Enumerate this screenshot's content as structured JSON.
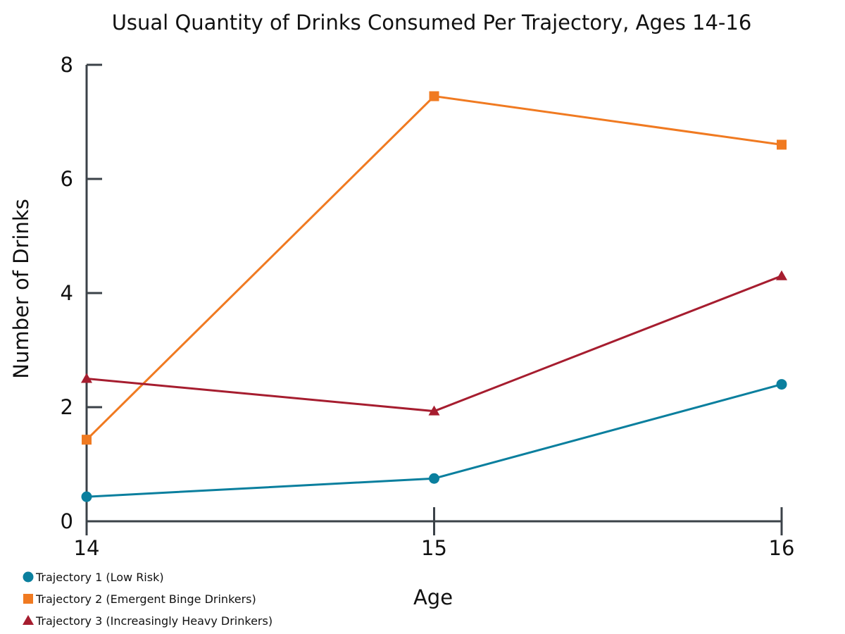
{
  "chart_data": {
    "type": "line",
    "title": "Usual Quantity of Drinks Consumed Per Trajectory, Ages 14-16",
    "xlabel": "Age",
    "ylabel": "Number of Drinks",
    "x": [
      14,
      15,
      16
    ],
    "x_tick_labels": [
      "14",
      "15",
      "16"
    ],
    "y_ticks": [
      0,
      2,
      4,
      6,
      8
    ],
    "y_tick_labels": [
      "0",
      "2",
      "4",
      "6",
      "8"
    ],
    "ylim": [
      0,
      8
    ],
    "xlim": [
      14,
      16
    ],
    "grid": false,
    "legend_position": "bottom-left",
    "axis_color": "#3b4248",
    "series": [
      {
        "name": "Trajectory 1 (Low Risk)",
        "values": [
          0.43,
          0.75,
          2.4
        ],
        "color": "#0a7f9e",
        "marker": "circle"
      },
      {
        "name": "Trajectory 2 (Emergent Binge Drinkers)",
        "values": [
          1.43,
          7.45,
          6.6
        ],
        "color": "#f07a21",
        "marker": "square"
      },
      {
        "name": "Trajectory 3 (Increasingly Heavy Drinkers)",
        "values": [
          2.5,
          1.93,
          4.3
        ],
        "color": "#a61d2f",
        "marker": "triangle"
      }
    ]
  }
}
